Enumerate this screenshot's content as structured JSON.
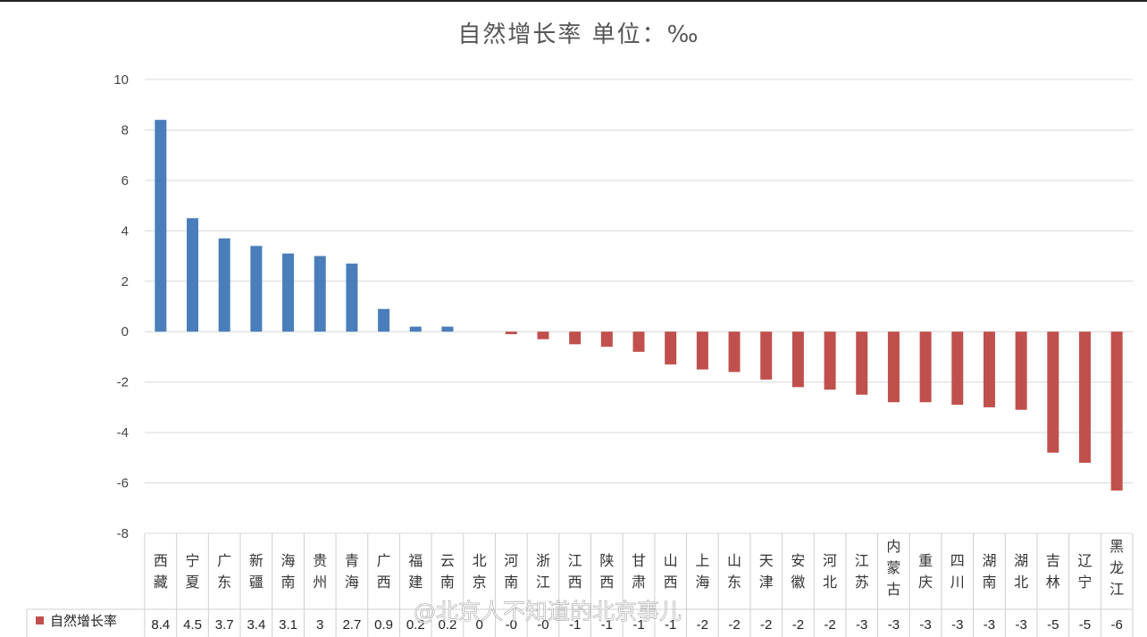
{
  "chart_data": {
    "type": "bar",
    "title": "自然增长率 单位：‰",
    "ylim": [
      -8,
      10
    ],
    "yticks": [
      10,
      8,
      6,
      4,
      2,
      0,
      -2,
      -4,
      -6,
      -8
    ],
    "grid": true,
    "legend_position": "bottom-left (data table)",
    "categories": [
      "西藏",
      "宁夏",
      "广东",
      "新疆",
      "海南",
      "贵州",
      "青海",
      "广西",
      "福建",
      "云南",
      "北京",
      "河南",
      "浙江",
      "江西",
      "陕西",
      "甘肃",
      "山西",
      "上海",
      "山东",
      "天津",
      "安徽",
      "河北",
      "江苏",
      "内蒙古",
      "重庆",
      "四川",
      "湖南",
      "湖北",
      "吉林",
      "辽宁",
      "黑龙江"
    ],
    "series": [
      {
        "name": "自然增长率",
        "values": [
          8.4,
          4.5,
          3.7,
          3.4,
          3.1,
          3.0,
          2.7,
          0.9,
          0.2,
          0.2,
          0.0,
          -0.1,
          -0.3,
          -0.5,
          -0.6,
          -0.8,
          -1.3,
          -1.5,
          -1.6,
          -1.9,
          -2.2,
          -2.3,
          -2.5,
          -2.8,
          -2.8,
          -2.9,
          -3.0,
          -3.1,
          -4.8,
          -5.2,
          -6.3
        ],
        "data_labels": [
          "8.4",
          "4.5",
          "3.7",
          "3.4",
          "3.1",
          "3",
          "2.7",
          "0.9",
          "0.2",
          "0.2",
          "0",
          "-0",
          "-0",
          "-1",
          "-1",
          "-1",
          "-1",
          "-2",
          "-2",
          "-2",
          "-2",
          "-2",
          "-3",
          "-3",
          "-3",
          "-3",
          "-3",
          "-3",
          "-5",
          "-5",
          "-6"
        ]
      }
    ],
    "colors": {
      "positive": "#4a7ebb",
      "negative": "#c0504d",
      "grid": "#d9d9d9",
      "axis_text": "#444444"
    },
    "legend_label": "自然增长率",
    "watermark": "@北京人不知道的北京事儿"
  }
}
